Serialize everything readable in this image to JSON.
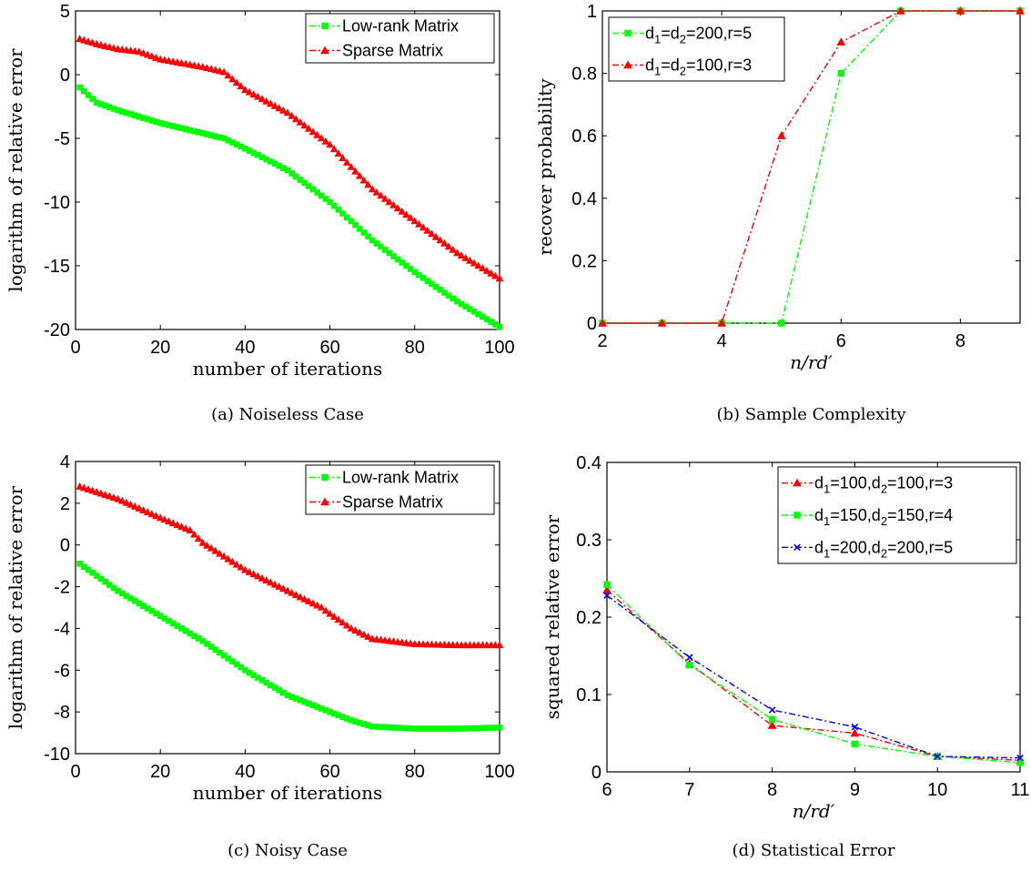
{
  "chart_data": [
    {
      "type": "line",
      "caption": "(a) Noiseless Case",
      "xlabel": "number of iterations",
      "ylabel": "logarithm of relative error",
      "xlim": [
        0,
        100
      ],
      "ylim": [
        -20,
        5
      ],
      "xticks": [
        0,
        20,
        40,
        60,
        80,
        100
      ],
      "yticks": [
        -20,
        -15,
        -10,
        -5,
        0,
        5
      ],
      "xtick_labels": [
        "0",
        "20",
        "40",
        "60",
        "80",
        "100"
      ],
      "ytick_labels": [
        "-20",
        "-15",
        "-10",
        "-5",
        "0",
        "5"
      ],
      "legend_position": "top-right",
      "series": [
        {
          "name": "Low-rank Matrix",
          "color": "#00ff00",
          "marker": "square",
          "dash": "dashdot",
          "markers_every_point": true,
          "points": [
            [
              1,
              -1.0
            ],
            [
              5,
              -2.2
            ],
            [
              10,
              -2.8
            ],
            [
              20,
              -3.8
            ],
            [
              30,
              -4.6
            ],
            [
              35,
              -5.0
            ],
            [
              40,
              -5.8
            ],
            [
              50,
              -7.5
            ],
            [
              60,
              -10.0
            ],
            [
              70,
              -13.0
            ],
            [
              80,
              -15.5
            ],
            [
              90,
              -17.8
            ],
            [
              100,
              -19.8
            ]
          ]
        },
        {
          "name": "Sparse Matrix",
          "color": "#ff0000",
          "marker": "triangle",
          "dash": "dashdot",
          "markers_every_point": true,
          "points": [
            [
              1,
              2.8
            ],
            [
              5,
              2.4
            ],
            [
              10,
              2.0
            ],
            [
              15,
              1.8
            ],
            [
              20,
              1.2
            ],
            [
              30,
              0.6
            ],
            [
              35,
              0.2
            ],
            [
              40,
              -1.2
            ],
            [
              50,
              -3.0
            ],
            [
              60,
              -5.5
            ],
            [
              70,
              -9.0
            ],
            [
              80,
              -11.5
            ],
            [
              90,
              -14.0
            ],
            [
              100,
              -16.0
            ]
          ]
        }
      ]
    },
    {
      "type": "line",
      "caption": "(b) Sample Complexity",
      "xlabel": "n/rd′",
      "ylabel": "recover probability",
      "xlim": [
        2,
        9
      ],
      "ylim": [
        0,
        1
      ],
      "xticks": [
        2,
        4,
        6,
        8
      ],
      "yticks": [
        0,
        0.2,
        0.4,
        0.6,
        0.8,
        1
      ],
      "xtick_labels": [
        "2",
        "4",
        "6",
        "8"
      ],
      "ytick_labels": [
        "0",
        "0.2",
        "0.4",
        "0.6",
        "0.8",
        "1"
      ],
      "legend_position": "top-left",
      "series": [
        {
          "name": "d1=d2=200,r=5",
          "label_parts": [
            "d",
            "1",
            "=d",
            "2",
            "=200,r=5"
          ],
          "color": "#00ff00",
          "marker": "square",
          "dash": "dashdot",
          "markers_every_point": false,
          "points": [
            [
              2,
              0
            ],
            [
              3,
              0
            ],
            [
              4,
              0
            ],
            [
              5,
              0
            ],
            [
              6,
              0.8
            ],
            [
              7,
              1
            ],
            [
              8,
              1
            ],
            [
              9,
              1
            ]
          ]
        },
        {
          "name": "d1=d2=100,r=3",
          "label_parts": [
            "d",
            "1",
            "=d",
            "2",
            "=100,r=3"
          ],
          "color": "#ff0000",
          "marker": "triangle",
          "dash": "dashdot",
          "markers_every_point": false,
          "points": [
            [
              2,
              0
            ],
            [
              3,
              0
            ],
            [
              4,
              0
            ],
            [
              5,
              0.6
            ],
            [
              6,
              0.9
            ],
            [
              7,
              1
            ],
            [
              8,
              1
            ],
            [
              9,
              1
            ]
          ]
        }
      ]
    },
    {
      "type": "line",
      "caption": "(c) Noisy Case",
      "xlabel": "number of iterations",
      "ylabel": "logarithm of relative error",
      "xlim": [
        0,
        100
      ],
      "ylim": [
        -10,
        4
      ],
      "xticks": [
        0,
        20,
        40,
        60,
        80,
        100
      ],
      "yticks": [
        -10,
        -8,
        -6,
        -4,
        -2,
        0,
        2,
        4
      ],
      "xtick_labels": [
        "0",
        "20",
        "40",
        "60",
        "80",
        "100"
      ],
      "ytick_labels": [
        "-10",
        "-8",
        "-6",
        "-4",
        "-2",
        "0",
        "2",
        "4"
      ],
      "legend_position": "top-right",
      "series": [
        {
          "name": "Low-rank Matrix",
          "color": "#00ff00",
          "marker": "square",
          "dash": "dashdot",
          "markers_every_point": true,
          "points": [
            [
              1,
              -0.9
            ],
            [
              10,
              -2.2
            ],
            [
              20,
              -3.4
            ],
            [
              30,
              -4.6
            ],
            [
              40,
              -6.0
            ],
            [
              50,
              -7.2
            ],
            [
              60,
              -8.0
            ],
            [
              65,
              -8.4
            ],
            [
              70,
              -8.7
            ],
            [
              80,
              -8.8
            ],
            [
              90,
              -8.8
            ],
            [
              100,
              -8.75
            ]
          ]
        },
        {
          "name": "Sparse Matrix",
          "color": "#ff0000",
          "marker": "triangle",
          "dash": "dashdot",
          "markers_every_point": true,
          "points": [
            [
              1,
              2.8
            ],
            [
              10,
              2.2
            ],
            [
              20,
              1.3
            ],
            [
              27,
              0.7
            ],
            [
              30,
              0.1
            ],
            [
              40,
              -1.2
            ],
            [
              50,
              -2.2
            ],
            [
              58,
              -3.0
            ],
            [
              60,
              -3.3
            ],
            [
              65,
              -4.0
            ],
            [
              70,
              -4.5
            ],
            [
              80,
              -4.75
            ],
            [
              90,
              -4.8
            ],
            [
              100,
              -4.8
            ]
          ]
        }
      ]
    },
    {
      "type": "line",
      "caption": "(d) Statistical Error",
      "xlabel": "n/rd′",
      "ylabel": "squared relative error",
      "xlim": [
        6,
        11
      ],
      "ylim": [
        0,
        0.4
      ],
      "xticks": [
        6,
        7,
        8,
        9,
        10,
        11
      ],
      "yticks": [
        0,
        0.1,
        0.2,
        0.3,
        0.4
      ],
      "xtick_labels": [
        "6",
        "7",
        "8",
        "9",
        "10",
        "11"
      ],
      "ytick_labels": [
        "0",
        "0.1",
        "0.2",
        "0.3",
        "0.4"
      ],
      "legend_position": "top-right",
      "series": [
        {
          "name": "d1=100,d2=100,r=3",
          "label_parts": [
            "d",
            "1",
            "=100,d",
            "2",
            "=100,r=3"
          ],
          "color": "#ff0000",
          "marker": "triangle",
          "dash": "dashdot",
          "markers_every_point": false,
          "points": [
            [
              6,
              0.235
            ],
            [
              7,
              0.14
            ],
            [
              8,
              0.06
            ],
            [
              9,
              0.05
            ],
            [
              10,
              0.02
            ],
            [
              11,
              0.015
            ]
          ]
        },
        {
          "name": "d1=150,d2=150,r=4",
          "label_parts": [
            "d",
            "1",
            "=150,d",
            "2",
            "=150,r=4"
          ],
          "color": "#00ff00",
          "marker": "square",
          "dash": "dashdot",
          "markers_every_point": false,
          "points": [
            [
              6,
              0.242
            ],
            [
              7,
              0.138
            ],
            [
              8,
              0.068
            ],
            [
              9,
              0.036
            ],
            [
              10,
              0.02
            ],
            [
              11,
              0.012
            ]
          ]
        },
        {
          "name": "d1=200,d2=200,r=5",
          "label_parts": [
            "d",
            "1",
            "=200,d",
            "2",
            "=200,r=5"
          ],
          "color": "#0000ff",
          "marker": "x",
          "dash": "dashdot",
          "markers_every_point": false,
          "points": [
            [
              6,
              0.228
            ],
            [
              7,
              0.148
            ],
            [
              8,
              0.08
            ],
            [
              9,
              0.058
            ],
            [
              10,
              0.02
            ],
            [
              11,
              0.018
            ]
          ]
        }
      ]
    }
  ]
}
